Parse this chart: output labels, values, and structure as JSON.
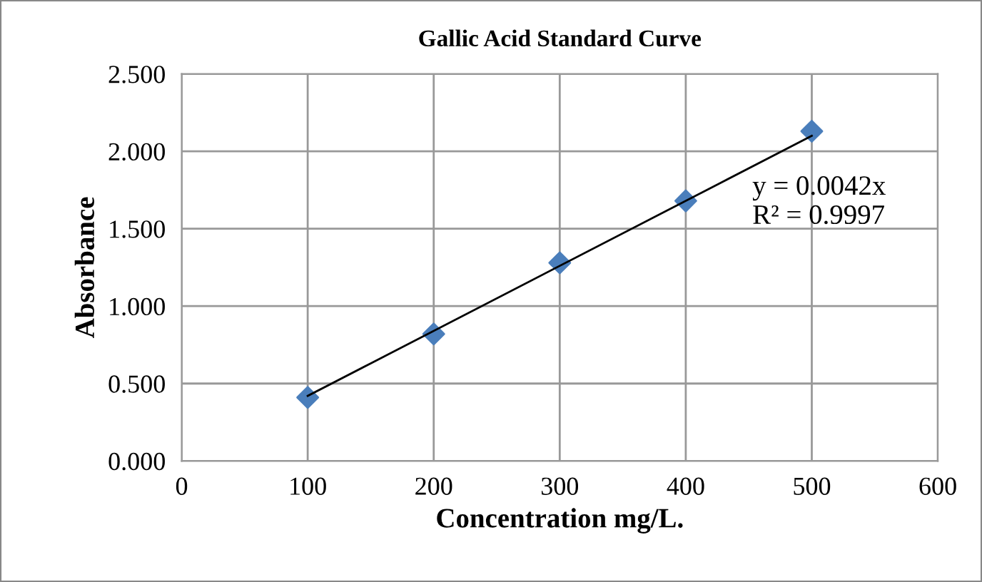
{
  "chart_data": {
    "type": "scatter",
    "title": "Gallic Acid Standard Curve",
    "xlabel": "Concentration mg/L.",
    "ylabel": "Absorbance",
    "x": [
      100,
      200,
      300,
      400,
      500
    ],
    "series": [
      {
        "color": "#4a7ebb",
        "marker": "diamond",
        "values": [
          0.41,
          0.82,
          1.28,
          1.68,
          2.13
        ]
      },
      {
        "type": "line",
        "color": "#000000",
        "marker": "none",
        "line_style": "solid",
        "x": [
          100,
          500
        ],
        "values": [
          0.42,
          2.1
        ]
      }
    ],
    "annotations": [
      {
        "text": "y = 0.0042x\nR² = 0.9997",
        "x": 500,
        "y": 2.1
      }
    ],
    "xlim": [
      0,
      600
    ],
    "xticks": [
      0,
      100,
      200,
      300,
      400,
      500,
      600
    ],
    "ylim": [
      0,
      2.5
    ],
    "yticks": [
      {
        "value": 0,
        "label": "0.000"
      },
      {
        "value": 0.5,
        "label": "0.500"
      },
      {
        "value": 1,
        "label": "1.000"
      },
      {
        "value": 1.5,
        "label": "1.500"
      },
      {
        "value": 2,
        "label": "2.000"
      },
      {
        "value": 2.5,
        "label": "2.500"
      }
    ],
    "grid": true,
    "legend": false
  }
}
